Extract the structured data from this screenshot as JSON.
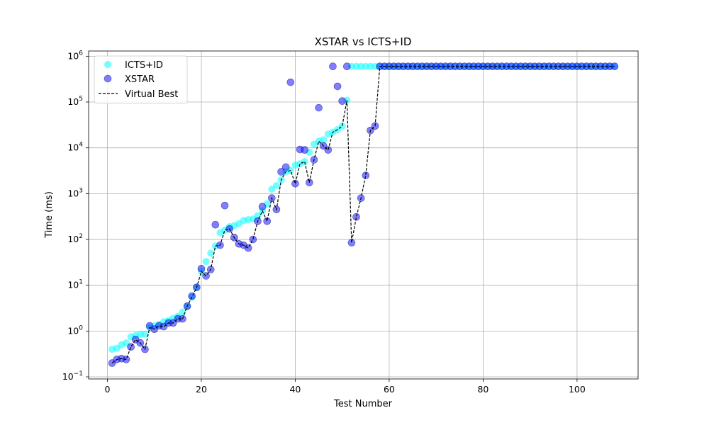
{
  "chart_data": {
    "type": "scatter",
    "title": "XSTAR vs ICTS+ID",
    "xlabel": "Test Number",
    "ylabel": "Time (ms)",
    "yscale": "log",
    "xlim": [
      -4,
      113
    ],
    "ylim": [
      0.09,
      1300000
    ],
    "grid": true,
    "legend_position": "top-left",
    "x_ticks": [
      {
        "value": 0,
        "label": "0"
      },
      {
        "value": 20,
        "label": "20"
      },
      {
        "value": 40,
        "label": "40"
      },
      {
        "value": 60,
        "label": "60"
      },
      {
        "value": 80,
        "label": "80"
      },
      {
        "value": 100,
        "label": "100"
      }
    ],
    "y_ticks": [
      {
        "value": 0.1,
        "base": "10",
        "exp": "−1"
      },
      {
        "value": 1,
        "base": "10",
        "exp": "0"
      },
      {
        "value": 10,
        "base": "10",
        "exp": "1"
      },
      {
        "value": 100,
        "base": "10",
        "exp": "2"
      },
      {
        "value": 1000,
        "base": "10",
        "exp": "3"
      },
      {
        "value": 10000,
        "base": "10",
        "exp": "4"
      },
      {
        "value": 100000,
        "base": "10",
        "exp": "5"
      },
      {
        "value": 1000000,
        "base": "10",
        "exp": "6"
      }
    ],
    "series": [
      {
        "name": "ICTS+ID",
        "kind": "scatter",
        "color": "#00ffff",
        "opacity": 0.55,
        "x": [
          1,
          2,
          3,
          4,
          5,
          6,
          7,
          8,
          9,
          10,
          11,
          12,
          13,
          14,
          15,
          16,
          17,
          18,
          19,
          20,
          21,
          22,
          23,
          24,
          25,
          26,
          27,
          28,
          29,
          30,
          31,
          32,
          33,
          34,
          35,
          36,
          37,
          38,
          39,
          40,
          41,
          42,
          43,
          44,
          45,
          46,
          47,
          48,
          49,
          50,
          51,
          52,
          53,
          54,
          55,
          56,
          57,
          58,
          59,
          60,
          61,
          62,
          63,
          64,
          65,
          66,
          67,
          68,
          69,
          70,
          71,
          72,
          73,
          74,
          75,
          76,
          77,
          78,
          79,
          80,
          81,
          82,
          83,
          84,
          85,
          86,
          87,
          88,
          89,
          90,
          91,
          92,
          93,
          94,
          95,
          96,
          97,
          98,
          99,
          100,
          101,
          102,
          103,
          104,
          105,
          106,
          107,
          108
        ],
        "y": [
          0.4,
          0.42,
          0.5,
          0.55,
          0.75,
          0.8,
          0.85,
          0.85,
          1.2,
          1.3,
          1.4,
          1.6,
          1.7,
          1.9,
          2.1,
          2.6,
          3.5,
          5.5,
          9,
          20,
          33,
          50,
          72,
          140,
          160,
          190,
          200,
          220,
          260,
          270,
          280,
          330,
          420,
          600,
          1250,
          1500,
          2000,
          3000,
          3200,
          4200,
          4500,
          5000,
          8000,
          12000,
          14000,
          15000,
          20000,
          22000,
          25000,
          30000,
          110000,
          600000,
          600000,
          600000,
          600000,
          600000,
          600000,
          600000,
          600000,
          600000,
          600000,
          600000,
          600000,
          600000,
          600000,
          600000,
          600000,
          600000,
          600000,
          600000,
          600000,
          600000,
          600000,
          600000,
          600000,
          600000,
          600000,
          600000,
          600000,
          600000,
          600000,
          600000,
          600000,
          600000,
          600000,
          600000,
          600000,
          600000,
          600000,
          600000,
          600000,
          600000,
          600000,
          600000,
          600000,
          600000,
          600000,
          600000,
          600000,
          600000,
          600000,
          600000,
          600000,
          600000,
          600000,
          600000,
          600000,
          600000
        ]
      },
      {
        "name": "XSTAR",
        "kind": "scatter",
        "color": "#0000ff",
        "opacity": 0.5,
        "x": [
          1,
          2,
          3,
          4,
          5,
          6,
          7,
          8,
          9,
          10,
          11,
          12,
          13,
          14,
          15,
          16,
          17,
          18,
          19,
          20,
          21,
          22,
          23,
          24,
          25,
          26,
          27,
          28,
          29,
          30,
          31,
          32,
          33,
          34,
          35,
          36,
          37,
          38,
          39,
          40,
          41,
          42,
          43,
          44,
          45,
          46,
          47,
          48,
          49,
          50,
          51,
          52,
          53,
          54,
          55,
          56,
          57,
          58,
          59,
          60,
          61,
          62,
          63,
          64,
          65,
          66,
          67,
          68,
          69,
          70,
          71,
          72,
          73,
          74,
          75,
          76,
          77,
          78,
          79,
          80,
          81,
          82,
          83,
          84,
          85,
          86,
          87,
          88,
          89,
          90,
          91,
          92,
          93,
          94,
          95,
          96,
          97,
          98,
          99,
          100,
          101,
          102,
          103,
          104,
          105,
          106,
          107,
          108
        ],
        "y": [
          0.2,
          0.24,
          0.25,
          0.24,
          0.45,
          0.65,
          0.55,
          0.4,
          1.3,
          1.1,
          1.3,
          1.25,
          1.5,
          1.5,
          1.85,
          1.85,
          3.5,
          5.8,
          9,
          23,
          16,
          22,
          210,
          75,
          550,
          170,
          110,
          80,
          75,
          65,
          100,
          250,
          520,
          250,
          800,
          450,
          3000,
          3800,
          270000,
          1650,
          9200,
          9000,
          1750,
          5500,
          75000,
          11000,
          9000,
          600000,
          220000,
          105000,
          600000,
          85,
          310,
          800,
          2500,
          24000,
          30000,
          600000,
          600000,
          600000,
          600000,
          600000,
          600000,
          600000,
          600000,
          600000,
          600000,
          600000,
          600000,
          600000,
          600000,
          600000,
          600000,
          600000,
          600000,
          600000,
          600000,
          600000,
          600000,
          600000,
          600000,
          600000,
          600000,
          600000,
          600000,
          600000,
          600000,
          600000,
          600000,
          600000,
          600000,
          600000,
          600000,
          600000,
          600000,
          600000,
          600000,
          600000,
          600000,
          600000,
          600000,
          600000,
          600000,
          600000,
          600000,
          600000,
          600000,
          600000
        ]
      },
      {
        "name": "Virtual Best",
        "kind": "line",
        "color": "#000000",
        "dash": "dashed",
        "x": [
          1,
          2,
          3,
          4,
          5,
          6,
          7,
          8,
          9,
          10,
          11,
          12,
          13,
          14,
          15,
          16,
          17,
          18,
          19,
          20,
          21,
          22,
          23,
          24,
          25,
          26,
          27,
          28,
          29,
          30,
          31,
          32,
          33,
          34,
          35,
          36,
          37,
          38,
          39,
          40,
          41,
          42,
          43,
          44,
          45,
          46,
          47,
          48,
          49,
          50,
          51,
          52,
          53,
          54,
          55,
          56,
          57,
          58,
          59,
          60,
          61,
          62,
          63,
          64,
          65,
          66,
          67,
          68,
          69,
          70,
          71,
          72,
          73,
          74,
          75,
          76,
          77,
          78,
          79,
          80,
          81,
          82,
          83,
          84,
          85,
          86,
          87,
          88,
          89,
          90,
          91,
          92,
          93,
          94,
          95,
          96,
          97,
          98,
          99,
          100,
          101,
          102,
          103,
          104,
          105,
          106,
          107,
          108
        ],
        "y": [
          0.2,
          0.24,
          0.25,
          0.24,
          0.45,
          0.65,
          0.55,
          0.4,
          1.2,
          1.1,
          1.3,
          1.25,
          1.5,
          1.5,
          1.85,
          1.85,
          3.5,
          5.5,
          9,
          20,
          16,
          22,
          72,
          75,
          160,
          170,
          110,
          80,
          75,
          65,
          100,
          250,
          420,
          250,
          800,
          450,
          2000,
          3000,
          3200,
          1650,
          4500,
          5000,
          1750,
          5500,
          14000,
          11000,
          9000,
          22000,
          25000,
          30000,
          110000,
          85,
          310,
          800,
          2500,
          24000,
          30000,
          600000,
          600000,
          600000,
          600000,
          600000,
          600000,
          600000,
          600000,
          600000,
          600000,
          600000,
          600000,
          600000,
          600000,
          600000,
          600000,
          600000,
          600000,
          600000,
          600000,
          600000,
          600000,
          600000,
          600000,
          600000,
          600000,
          600000,
          600000,
          600000,
          600000,
          600000,
          600000,
          600000,
          600000,
          600000,
          600000,
          600000,
          600000,
          600000,
          600000,
          600000,
          600000,
          600000,
          600000,
          600000,
          600000,
          600000,
          600000,
          600000,
          600000,
          600000
        ]
      }
    ]
  }
}
